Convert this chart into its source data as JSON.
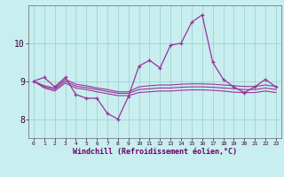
{
  "x": [
    0,
    1,
    2,
    3,
    4,
    5,
    6,
    7,
    8,
    9,
    10,
    11,
    12,
    13,
    14,
    15,
    16,
    17,
    18,
    19,
    20,
    21,
    22,
    23
  ],
  "main_line": [
    9.0,
    9.1,
    8.85,
    9.1,
    8.65,
    8.55,
    8.55,
    8.15,
    8.0,
    8.6,
    9.4,
    9.55,
    9.35,
    9.95,
    10.0,
    10.55,
    10.75,
    9.5,
    9.05,
    8.85,
    8.7,
    8.85,
    9.05,
    8.85
  ],
  "line2": [
    9.0,
    8.88,
    8.82,
    9.05,
    8.92,
    8.88,
    8.82,
    8.78,
    8.72,
    8.72,
    8.85,
    8.88,
    8.9,
    8.9,
    8.92,
    8.93,
    8.93,
    8.92,
    8.9,
    8.88,
    8.86,
    8.86,
    8.9,
    8.86
  ],
  "line3": [
    9.0,
    8.85,
    8.78,
    9.0,
    8.87,
    8.83,
    8.78,
    8.73,
    8.68,
    8.68,
    8.78,
    8.8,
    8.82,
    8.82,
    8.84,
    8.85,
    8.85,
    8.84,
    8.82,
    8.8,
    8.78,
    8.78,
    8.82,
    8.78
  ],
  "line4": [
    9.0,
    8.82,
    8.74,
    8.95,
    8.82,
    8.78,
    8.72,
    8.67,
    8.62,
    8.62,
    8.7,
    8.72,
    8.74,
    8.74,
    8.76,
    8.77,
    8.77,
    8.76,
    8.74,
    8.71,
    8.7,
    8.7,
    8.74,
    8.7
  ],
  "bg_color": "#c8eef0",
  "line_color": "#993399",
  "grid_color": "#99cccc",
  "xlabel": "Windchill (Refroidissement éolien,°C)",
  "ylim": [
    7.5,
    11.0
  ],
  "xlim": [
    -0.5,
    23.5
  ],
  "yticks": [
    8,
    9,
    10
  ],
  "ytick_labels": [
    "8",
    "9",
    "10"
  ]
}
